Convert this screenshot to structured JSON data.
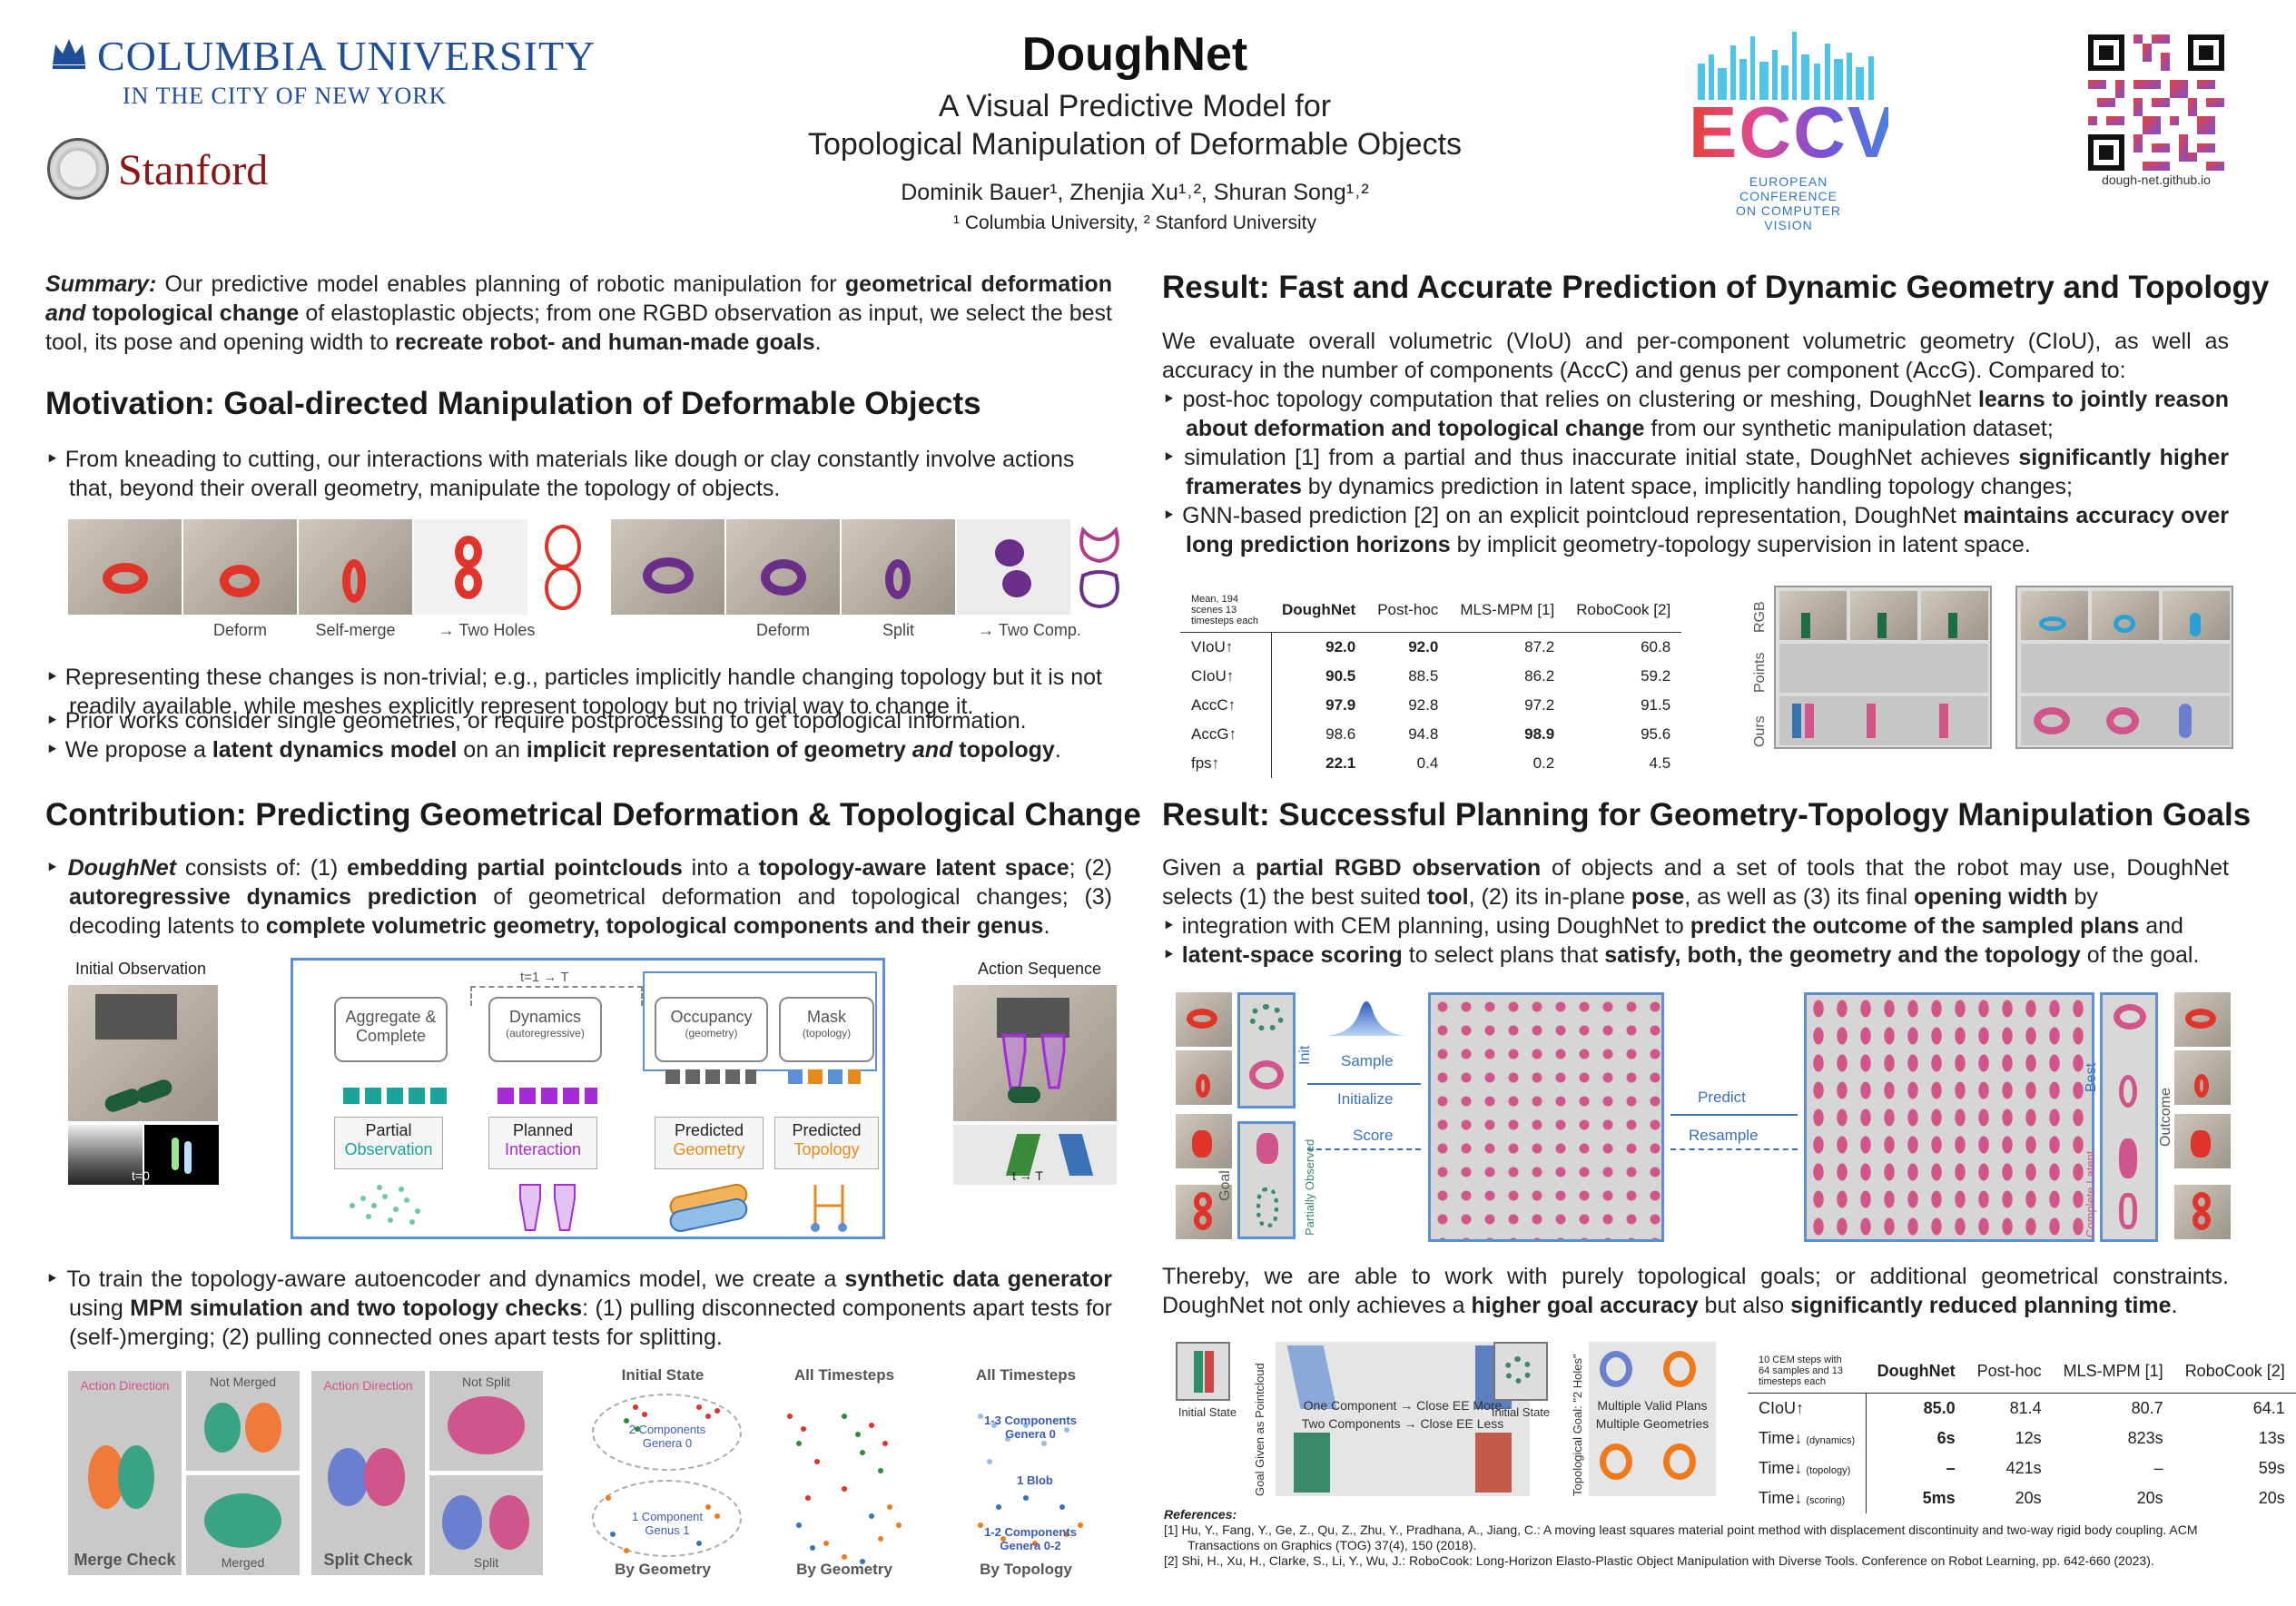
{
  "header": {
    "title": "DoughNet",
    "subtitle_line1": "A Visual Predictive Model for",
    "subtitle_line2": "Topological Manipulation of Deformable Objects",
    "authors": "Dominik Bauer¹, Zhenjia Xu¹˒², Shuran Song¹˒²",
    "affiliations": "¹ Columbia University,   ² Stanford University",
    "columbia_line1": "COLUMBIA UNIVERSITY",
    "columbia_line2": "IN THE CITY OF NEW YORK",
    "stanford": "Stanford",
    "eccv_lines": [
      "EUROPEAN",
      "CONFERENCE",
      "ON COMPUTER",
      "VISION"
    ],
    "qr_url": "dough-net.github.io"
  },
  "summary": {
    "lead": "Summary:",
    "t1": " Our predictive model enables planning of robotic manipulation for ",
    "b1": "geometrical deformation ",
    "i1": "and",
    "b2": " topological change",
    "t2": " of elastoplastic objects; from one RGBD observation as input, we select the best tool, its pose and opening width to ",
    "b3": "recreate robot- and human-made goals",
    "t3": "."
  },
  "motivation": {
    "heading": "Motivation: Goal-directed Manipulation of Deformable Objects",
    "bullet1": "‣ From kneading to cutting, our interactions with materials like dough or clay constantly involve actions that, beyond their overall geometry, manipulate the topology of objects.",
    "captions_left": [
      "Deform",
      "Self-merge",
      "→ Two Holes"
    ],
    "captions_right": [
      "Deform",
      "Split",
      "→ Two Comp."
    ],
    "bullet2": "‣ Representing these changes is non-trivial; e.g., particles implicitly handle changing topology but it is not readily available, while meshes explicitly represent topology but no trivial way to change it.",
    "bullet3": "‣ Prior works consider single geometries, or require postprocessing to get topological information.",
    "bullet4_pre": "‣ We propose a ",
    "bullet4_b1": "latent dynamics model",
    "bullet4_mid": " on an ",
    "bullet4_b2": "implicit representation of geometry ",
    "bullet4_i": "and",
    "bullet4_b3": " topology",
    "bullet4_end": "."
  },
  "contribution": {
    "heading": "Contribution: Predicting Geometrical Deformation & Topological Change",
    "p1_a": "‣ ",
    "p1_name": "DoughNet",
    "p1_b": " consists of: (1) ",
    "p1_c": "embedding partial pointclouds",
    "p1_d": " into a ",
    "p1_e": "topology-aware latent space",
    "p1_f": "; (2) ",
    "p1_g": "autoregressive dynamics prediction",
    "p1_h": " of geometrical deformation and topological changes; (3) decoding latents to ",
    "p1_i": "complete volumetric geometry, topological components and their genus",
    "p1_j": ".",
    "initial_obs": "Initial Observation",
    "action_seq": "Action Sequence",
    "t0": "t=0",
    "tT": "t → T",
    "loop": "t=1 → T",
    "modules": [
      "Aggregate & Complete",
      "Dynamics",
      "Occupancy",
      "Mask"
    ],
    "module_subs": [
      "",
      "(autoregressive)",
      "(geometry)",
      "(topology)"
    ],
    "inputs": [
      {
        "top": "Partial",
        "bottom": "Observation",
        "color": "#1aa39a"
      },
      {
        "top": "Planned",
        "bottom": "Interaction",
        "color": "#a62bd6"
      },
      {
        "top": "Predicted",
        "bottom": "Geometry",
        "color": "#e88a1a"
      },
      {
        "top": "Predicted",
        "bottom": "Topology",
        "color": "#e88a1a"
      }
    ],
    "p2_a": "‣ To train the topology-aware autoencoder and dynamics model, we create a ",
    "p2_b": "synthetic data generator",
    "p2_c": " using ",
    "p2_d": "MPM simulation and two topology checks",
    "p2_e": ": (1) pulling disconnected components apart tests for (self-)merging; (2) pulling connected ones apart tests for splitting.",
    "merge": {
      "action": "Action Direction",
      "not": "Not Merged",
      "yes": "Merged",
      "label": "Merge Check"
    },
    "split": {
      "action": "Action Direction",
      "not": "Not Split",
      "yes": "Split",
      "label": "Split Check"
    },
    "scatter_titles": [
      "Initial State",
      "All Timesteps",
      "All Timesteps"
    ],
    "scatter_bottoms": [
      "By Geometry",
      "By Geometry",
      "By Topology"
    ],
    "scatter_notes": [
      "2 Components Genera 0",
      "1 Component Genus 1",
      "1-3 Components Genera 0",
      "1 Blob",
      "1-2 Components Genera 0-2"
    ]
  },
  "result1": {
    "heading": "Result: Fast and Accurate Prediction of Dynamic Geometry and Topology",
    "intro": "We evaluate overall volumetric (VIoU) and per-component volumetric geometry (CIoU), as well as accuracy in the number of components (AccC) and genus per component (AccG). Compared to:",
    "b1_a": "‣ post-hoc topology computation that relies on clustering or meshing, DoughNet ",
    "b1_b": "learns to jointly reason about deformation and topological change",
    "b1_c": " from our synthetic manipulation dataset;",
    "b2_a": "‣ simulation [1] from a partial and thus inaccurate initial state, DoughNet achieves ",
    "b2_b": "significantly higher framerates",
    "b2_c": " by dynamics prediction in latent space, implicitly handling topology changes;",
    "b3_a": "‣ GNN-based prediction [2] on an explicit pointcloud representation, DoughNet ",
    "b3_b": "maintains accuracy over long prediction horizons",
    "b3_c": " by implicit geometry-topology supervision in latent space.",
    "table": {
      "corner": "Mean, 194 scenes 13 timesteps each",
      "columns": [
        "DoughNet",
        "Post-hoc",
        "MLS-MPM [1]",
        "RoboCook [2]"
      ],
      "rows": [
        {
          "label": "VIoU↑",
          "values": [
            "92.0",
            "92.0",
            "87.2",
            "60.8"
          ],
          "bold": [
            0,
            1
          ]
        },
        {
          "label": "CIoU↑",
          "values": [
            "90.5",
            "88.5",
            "86.2",
            "59.2"
          ],
          "bold": [
            0
          ]
        },
        {
          "label": "AccC↑",
          "values": [
            "97.9",
            "92.8",
            "97.2",
            "91.5"
          ],
          "bold": [
            0
          ]
        },
        {
          "label": "AccG↑",
          "values": [
            "98.6",
            "94.8",
            "98.9",
            "95.6"
          ],
          "bold": [
            2
          ]
        },
        {
          "label": "fps↑",
          "values": [
            "22.1",
            "0.4",
            "0.2",
            "4.5"
          ],
          "bold": [
            0
          ]
        }
      ]
    },
    "row_labels": [
      "RGB",
      "Points",
      "Ours"
    ]
  },
  "result2": {
    "heading": "Result: Successful Planning for Geometry-Topology Manipulation Goals",
    "p_a": "Given a ",
    "p_b": "partial RGBD observation",
    "p_c": " of objects and a set of tools that the robot may use, DoughNet selects (1) the best suited ",
    "p_d": "tool",
    "p_e": ", (2) its in-plane ",
    "p_f": "pose",
    "p_g": ", as well as (3) its final ",
    "p_h": "opening width",
    "p_i": " by",
    "b1_a": "‣ integration with CEM planning, using DoughNet to ",
    "b1_b": "predict the outcome of the sampled plans",
    "b1_c": " and",
    "b2_a": "‣ ",
    "b2_b": "latent-space scoring",
    "b2_c": " to select plans that ",
    "b2_d": "satisfy, both, the geometry and the topology",
    "b2_e": " of the goal.",
    "labels": {
      "init": "Init",
      "goal": "Goal",
      "sample": "Sample",
      "initialize": "Initialize",
      "score": "Score",
      "predict": "Predict",
      "resample": "Resample",
      "best": "Best",
      "outcome": "Outcome",
      "partial": "Partially Observed",
      "complete": "Complete Latent"
    },
    "p2_a": "Thereby, we are able to work with purely topological goals; or additional geometrical constraints. DoughNet not only achieves a ",
    "p2_b": "higher goal accuracy",
    "p2_c": " but also ",
    "p2_d": "significantly reduced planning time",
    "p2_e": ".",
    "fig": {
      "initial_state": "Initial State",
      "goal_pc": "Goal Given as Pointcloud",
      "one": "One Component → Close EE More",
      "two": "Two Components → Close EE Less",
      "initial_state2": "Initial State",
      "topo_goal": "Topological Goal: \"2 Holes\"",
      "multi_plans": "Multiple Valid Plans",
      "multi_geo": "Multiple Geometries"
    },
    "table": {
      "corner": "10 CEM steps with 64 samples and 13 timesteps each",
      "columns": [
        "DoughNet",
        "Post-hoc",
        "MLS-MPM [1]",
        "RoboCook [2]"
      ],
      "rows": [
        {
          "label": "CIoU↑",
          "sub": "",
          "values": [
            "85.0",
            "81.4",
            "80.7",
            "64.1"
          ]
        },
        {
          "label": "Time↓",
          "sub": "(dynamics)",
          "values": [
            "6s",
            "12s",
            "823s",
            "13s"
          ]
        },
        {
          "label": "Time↓",
          "sub": "(topology)",
          "values": [
            "–",
            "421s",
            "–",
            "59s"
          ]
        },
        {
          "label": "Time↓",
          "sub": "(scoring)",
          "values": [
            "5ms",
            "20s",
            "20s",
            "20s"
          ]
        }
      ]
    }
  },
  "references": {
    "title": "References:",
    "r1": "[1] Hu, Y., Fang, Y., Ge, Z., Qu, Z., Zhu, Y., Pradhana, A., Jiang, C.: A moving least squares material point method with displacement discontinuity and two-way rigid body coupling. ACM Transactions on Graphics (TOG) 37(4), 150 (2018).",
    "r2": "[2] Shi, H., Xu, H., Clarke, S., Li, Y., Wu, J.: RoboCook: Long-Horizon Elasto-Plastic Object Manipulation with Diverse Tools. Conference on Robot Learning, pp. 642-660 (2023)."
  },
  "colors": {
    "accent_blue": "#5b8fd6",
    "columbia_blue": "#1f4e99",
    "stanford_red": "#8c1515",
    "dough_red": "#e0332a",
    "pink": "#d1548b",
    "purple": "#6b2f8a"
  }
}
